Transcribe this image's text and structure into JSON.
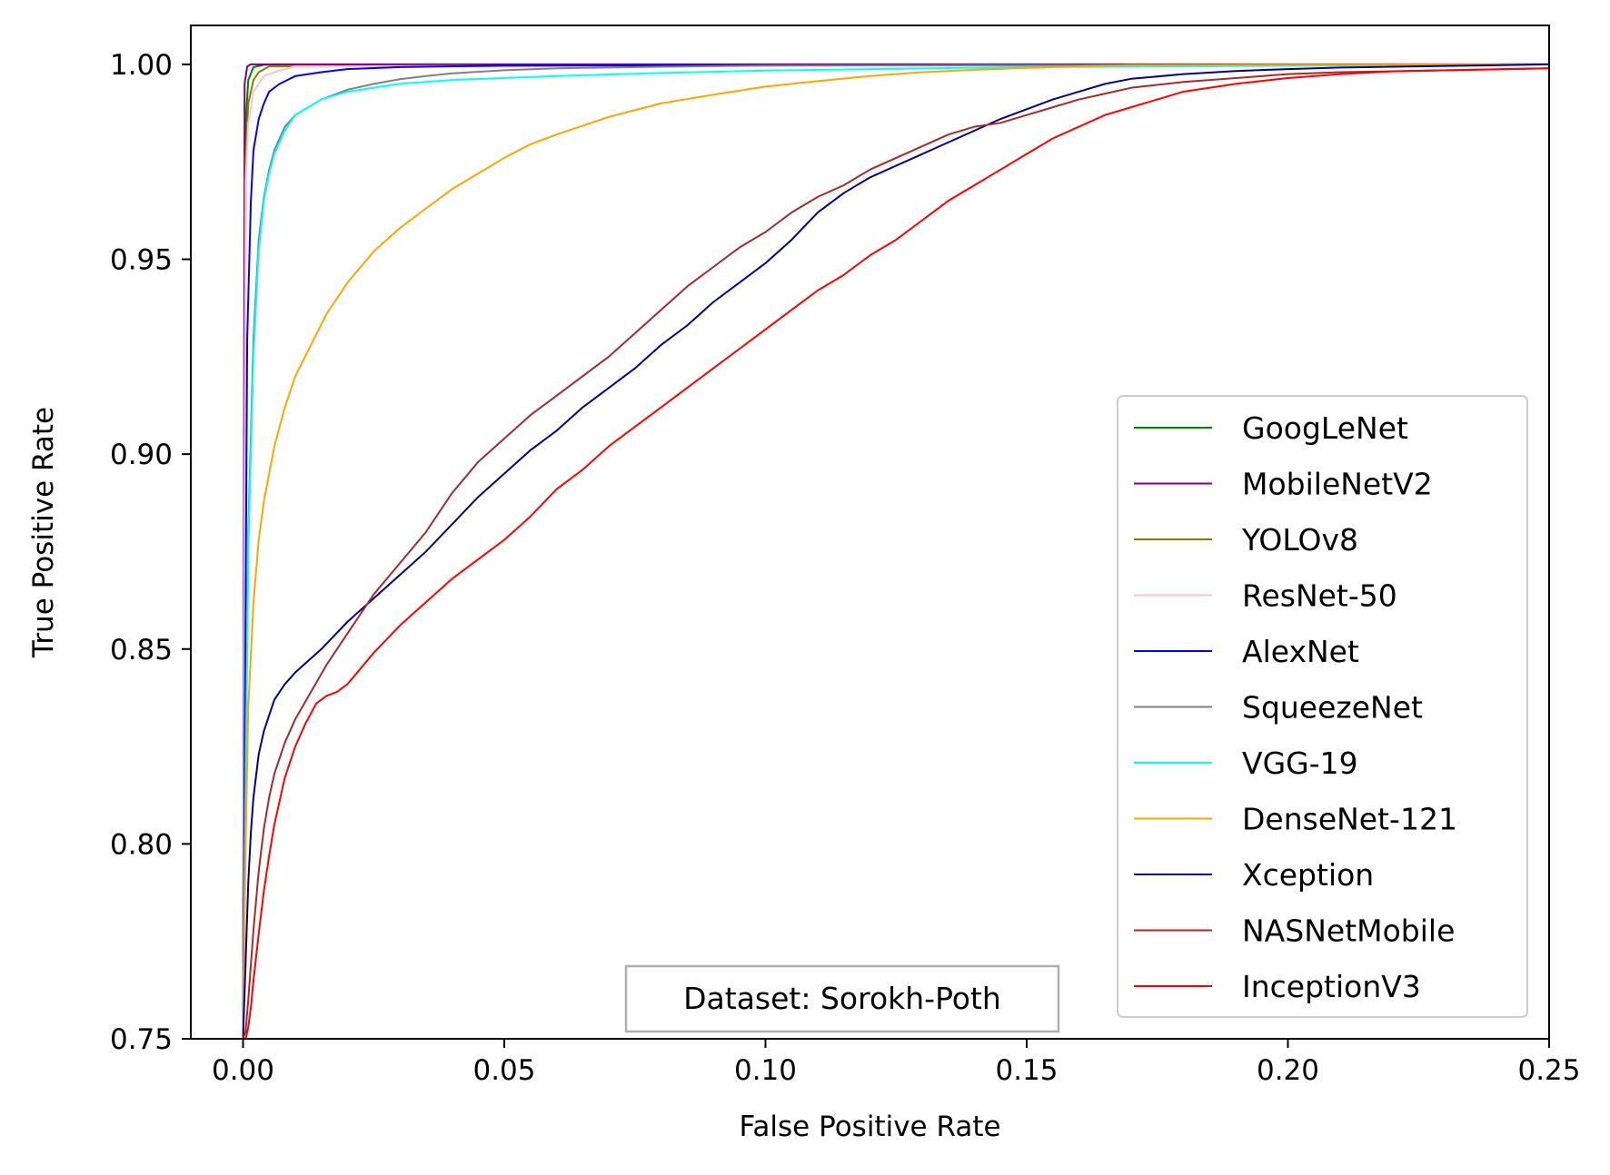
{
  "chart_data": {
    "type": "line",
    "title": "",
    "xlabel": "False Positive Rate",
    "ylabel": "True Positive Rate",
    "xlim": [
      -0.01,
      0.25
    ],
    "ylim": [
      0.75,
      1.01
    ],
    "xticks": [
      "0.00",
      "0.05",
      "0.10",
      "0.15",
      "0.20",
      "0.25"
    ],
    "yticks": [
      "0.75",
      "0.80",
      "0.85",
      "0.90",
      "0.95",
      "1.00"
    ],
    "grid": false,
    "legend_position": "bottom-right",
    "annotation": "Dataset: Sorokh-Poth",
    "series": [
      {
        "name": "GoogLeNet",
        "color": "#008000",
        "x": [
          0,
          0.0005,
          0.001,
          0.002,
          0.004,
          0.006,
          0.25
        ],
        "y": [
          0.75,
          0.985,
          0.996,
          0.9993,
          0.9999,
          1.0,
          1.0
        ]
      },
      {
        "name": "MobileNetV2",
        "color": "#800080",
        "x": [
          0,
          0.0003,
          0.0008,
          0.0015,
          0.25
        ],
        "y": [
          0.75,
          0.995,
          0.9995,
          1.0,
          1.0
        ]
      },
      {
        "name": "YOLOv8",
        "color": "#808000",
        "x": [
          0,
          0.0005,
          0.001,
          0.002,
          0.003,
          0.005,
          0.25
        ],
        "y": [
          0.75,
          0.975,
          0.99,
          0.996,
          0.998,
          0.9995,
          1.0
        ]
      },
      {
        "name": "ResNet-50",
        "color": "#ffc0cb",
        "x": [
          0,
          0.0005,
          0.001,
          0.002,
          0.004,
          0.006,
          0.01,
          0.25
        ],
        "y": [
          0.75,
          0.97,
          0.985,
          0.993,
          0.997,
          0.998,
          0.9995,
          1.0
        ]
      },
      {
        "name": "AlexNet",
        "color": "#0000ff",
        "x": [
          0,
          0.0008,
          0.0015,
          0.002,
          0.003,
          0.004,
          0.005,
          0.007,
          0.01,
          0.015,
          0.02,
          0.03,
          0.05,
          0.25
        ],
        "y": [
          0.75,
          0.93,
          0.965,
          0.978,
          0.986,
          0.99,
          0.993,
          0.995,
          0.997,
          0.998,
          0.9988,
          0.9993,
          0.9997,
          1.0
        ]
      },
      {
        "name": "SqueezeNet",
        "color": "#808080",
        "x": [
          0,
          0.001,
          0.002,
          0.003,
          0.004,
          0.005,
          0.006,
          0.008,
          0.01,
          0.015,
          0.02,
          0.025,
          0.03,
          0.035,
          0.04,
          0.05,
          0.06,
          0.08,
          0.1,
          0.25
        ],
        "y": [
          0.75,
          0.88,
          0.93,
          0.955,
          0.966,
          0.973,
          0.978,
          0.984,
          0.987,
          0.991,
          0.9935,
          0.995,
          0.9962,
          0.997,
          0.9977,
          0.9985,
          0.999,
          0.9994,
          0.9997,
          1.0
        ]
      },
      {
        "name": "VGG-19",
        "color": "#00ffff",
        "x": [
          0,
          0.001,
          0.002,
          0.003,
          0.004,
          0.005,
          0.006,
          0.008,
          0.01,
          0.015,
          0.02,
          0.03,
          0.04,
          0.06,
          0.08,
          0.1,
          0.12,
          0.15,
          0.25
        ],
        "y": [
          0.75,
          0.875,
          0.925,
          0.952,
          0.965,
          0.972,
          0.977,
          0.983,
          0.987,
          0.991,
          0.993,
          0.995,
          0.996,
          0.997,
          0.9978,
          0.9984,
          0.9988,
          0.9993,
          1.0
        ]
      },
      {
        "name": "DenseNet-121",
        "color": "#ffa500",
        "x": [
          0,
          0.0005,
          0.001,
          0.002,
          0.003,
          0.004,
          0.006,
          0.008,
          0.01,
          0.013,
          0.016,
          0.02,
          0.025,
          0.03,
          0.035,
          0.04,
          0.045,
          0.05,
          0.055,
          0.06,
          0.07,
          0.08,
          0.09,
          0.1,
          0.11,
          0.12,
          0.13,
          0.14,
          0.15,
          0.16,
          0.17,
          0.2,
          0.25
        ],
        "y": [
          0.75,
          0.8,
          0.835,
          0.862,
          0.878,
          0.888,
          0.902,
          0.912,
          0.92,
          0.928,
          0.936,
          0.944,
          0.952,
          0.958,
          0.963,
          0.968,
          0.972,
          0.976,
          0.9795,
          0.982,
          0.9865,
          0.99,
          0.9922,
          0.9943,
          0.9957,
          0.997,
          0.998,
          0.9986,
          0.9991,
          0.9995,
          0.9998,
          0.9999,
          1.0
        ]
      },
      {
        "name": "Xception",
        "color": "#00008b",
        "x": [
          0,
          0.0005,
          0.001,
          0.0015,
          0.002,
          0.003,
          0.004,
          0.005,
          0.006,
          0.008,
          0.01,
          0.015,
          0.02,
          0.025,
          0.03,
          0.035,
          0.04,
          0.045,
          0.05,
          0.055,
          0.06,
          0.065,
          0.07,
          0.075,
          0.08,
          0.085,
          0.09,
          0.095,
          0.1,
          0.105,
          0.11,
          0.115,
          0.12,
          0.125,
          0.13,
          0.135,
          0.14,
          0.145,
          0.15,
          0.155,
          0.16,
          0.165,
          0.17,
          0.18,
          0.19,
          0.2,
          0.21,
          0.25
        ],
        "y": [
          0.75,
          0.77,
          0.79,
          0.803,
          0.812,
          0.823,
          0.829,
          0.833,
          0.837,
          0.841,
          0.844,
          0.85,
          0.857,
          0.863,
          0.869,
          0.875,
          0.882,
          0.889,
          0.895,
          0.901,
          0.906,
          0.912,
          0.917,
          0.922,
          0.928,
          0.933,
          0.939,
          0.944,
          0.949,
          0.955,
          0.962,
          0.967,
          0.971,
          0.974,
          0.977,
          0.98,
          0.983,
          0.986,
          0.9885,
          0.991,
          0.993,
          0.995,
          0.9963,
          0.9975,
          0.9983,
          0.9988,
          0.9992,
          1.0
        ]
      },
      {
        "name": "NASNetMobile",
        "color": "#a52a2a",
        "x": [
          0,
          0.0005,
          0.001,
          0.002,
          0.003,
          0.004,
          0.005,
          0.006,
          0.008,
          0.01,
          0.013,
          0.016,
          0.02,
          0.025,
          0.03,
          0.035,
          0.04,
          0.045,
          0.05,
          0.055,
          0.06,
          0.065,
          0.07,
          0.075,
          0.08,
          0.085,
          0.09,
          0.095,
          0.1,
          0.105,
          0.11,
          0.115,
          0.12,
          0.125,
          0.13,
          0.135,
          0.14,
          0.145,
          0.15,
          0.155,
          0.16,
          0.165,
          0.17,
          0.18,
          0.19,
          0.2,
          0.21,
          0.25
        ],
        "y": [
          0.75,
          0.752,
          0.76,
          0.778,
          0.793,
          0.804,
          0.812,
          0.818,
          0.826,
          0.832,
          0.839,
          0.846,
          0.854,
          0.864,
          0.872,
          0.88,
          0.89,
          0.898,
          0.904,
          0.91,
          0.915,
          0.92,
          0.925,
          0.931,
          0.937,
          0.943,
          0.948,
          0.953,
          0.957,
          0.962,
          0.966,
          0.969,
          0.973,
          0.976,
          0.979,
          0.982,
          0.984,
          0.985,
          0.987,
          0.989,
          0.991,
          0.9925,
          0.994,
          0.9955,
          0.9965,
          0.9975,
          0.998,
          0.999
        ]
      },
      {
        "name": "InceptionV3",
        "color": "#ff0000",
        "x": [
          0,
          0.0005,
          0.001,
          0.0015,
          0.002,
          0.003,
          0.004,
          0.005,
          0.006,
          0.008,
          0.01,
          0.012,
          0.014,
          0.016,
          0.018,
          0.02,
          0.025,
          0.03,
          0.035,
          0.04,
          0.045,
          0.05,
          0.055,
          0.06,
          0.065,
          0.07,
          0.075,
          0.08,
          0.085,
          0.09,
          0.095,
          0.1,
          0.105,
          0.11,
          0.115,
          0.12,
          0.125,
          0.13,
          0.135,
          0.14,
          0.145,
          0.15,
          0.155,
          0.16,
          0.165,
          0.17,
          0.175,
          0.18,
          0.19,
          0.2,
          0.21,
          0.22,
          0.25
        ],
        "y": [
          0.75,
          0.75,
          0.753,
          0.758,
          0.765,
          0.777,
          0.788,
          0.797,
          0.805,
          0.817,
          0.825,
          0.831,
          0.836,
          0.838,
          0.839,
          0.841,
          0.849,
          0.856,
          0.862,
          0.868,
          0.873,
          0.878,
          0.884,
          0.891,
          0.896,
          0.902,
          0.907,
          0.912,
          0.917,
          0.922,
          0.927,
          0.932,
          0.937,
          0.942,
          0.946,
          0.951,
          0.955,
          0.96,
          0.965,
          0.969,
          0.973,
          0.977,
          0.981,
          0.984,
          0.987,
          0.989,
          0.991,
          0.993,
          0.995,
          0.9965,
          0.9975,
          0.9982,
          0.999
        ]
      }
    ]
  }
}
